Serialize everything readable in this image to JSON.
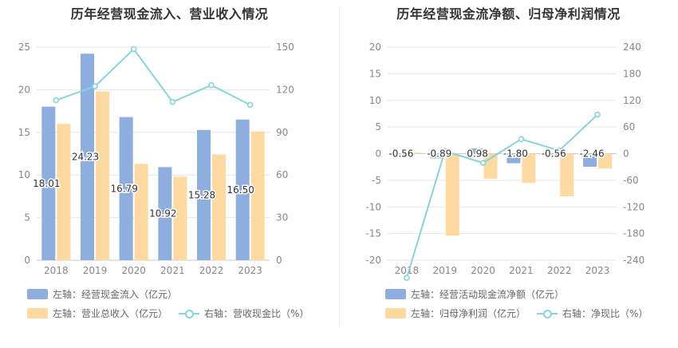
{
  "colors": {
    "blue": "#8eaedf",
    "orange": "#fed9a0",
    "cyan": "#88d4dc",
    "grid": "#e6e6e6",
    "axis": "#c8c8c8",
    "tick": "#888888"
  },
  "chart_data": [
    {
      "type": "bar",
      "title": "历年经营现金流入、营业收入情况",
      "categories": [
        "2018",
        "2019",
        "2020",
        "2021",
        "2022",
        "2023"
      ],
      "series": [
        {
          "name": "经营现金流入（亿元）",
          "axis": "left",
          "kind": "bar",
          "values": [
            18.01,
            24.23,
            16.79,
            10.92,
            15.28,
            16.5
          ],
          "labels": [
            "18.01",
            "24.23",
            "16.79",
            "10.92",
            "15.28",
            "16.50"
          ]
        },
        {
          "name": "营业总收入（亿元）",
          "axis": "left",
          "kind": "bar",
          "values": [
            16.0,
            19.8,
            11.3,
            9.8,
            12.4,
            15.1
          ]
        },
        {
          "name": "营收现金比（%）",
          "axis": "right",
          "kind": "line",
          "values": [
            112.6,
            122.4,
            148.6,
            111.4,
            123.2,
            109.3
          ]
        }
      ],
      "y_left": {
        "min": 0,
        "max": 25,
        "ticks": [
          "0",
          "5",
          "10",
          "15",
          "20",
          "25"
        ]
      },
      "y_right": {
        "min": 0,
        "max": 150,
        "ticks": [
          "0",
          "30",
          "60",
          "90",
          "120",
          "150"
        ]
      },
      "legend": [
        {
          "prefix": "左轴：",
          "label": "经营现金流入（亿元）",
          "type": "rect",
          "color": "blue"
        },
        {
          "prefix": "左轴：",
          "label": "营业总收入（亿元）",
          "type": "rect",
          "color": "orange"
        },
        {
          "prefix": "右轴：",
          "label": "营收现金比（%）",
          "type": "line",
          "color": "cyan"
        }
      ]
    },
    {
      "type": "bar",
      "title": "历年经营现金流净额、归母净利润情况",
      "categories": [
        "2018",
        "2019",
        "2020",
        "2021",
        "2022",
        "2023"
      ],
      "series": [
        {
          "name": "经营活动现金流净额（亿元）",
          "axis": "left",
          "kind": "bar",
          "values": [
            -0.56,
            -0.89,
            0.98,
            -1.8,
            -0.56,
            -2.46
          ],
          "labels": [
            "-0.56",
            "-0.89",
            "0.98",
            "-1.80",
            "-0.56",
            "-2.46"
          ]
        },
        {
          "name": "归母净利润（亿元）",
          "axis": "left",
          "kind": "bar",
          "values": [
            0.2,
            -15.4,
            -4.7,
            -5.5,
            -8.0,
            -2.8
          ]
        },
        {
          "name": "净现比（%）",
          "axis": "right",
          "kind": "line",
          "values": [
            -280,
            5.8,
            -20.9,
            32.7,
            7.0,
            87.9
          ]
        }
      ],
      "y_left": {
        "min": -20,
        "max": 20,
        "ticks": [
          "-20",
          "-15",
          "-10",
          "-5",
          "0",
          "5",
          "10",
          "15",
          "20"
        ]
      },
      "y_right": {
        "min": -240,
        "max": 240,
        "ticks": [
          "-240",
          "-180",
          "-120",
          "-60",
          "0",
          "60",
          "120",
          "180",
          "240"
        ]
      },
      "legend": [
        {
          "prefix": "左轴：",
          "label": "经营活动现金流净额（亿元）",
          "type": "rect",
          "color": "blue"
        },
        {
          "prefix": "左轴：",
          "label": "归母净利润（亿元）",
          "type": "rect",
          "color": "orange"
        },
        {
          "prefix": "右轴：",
          "label": "净现比（%）",
          "type": "line",
          "color": "cyan"
        }
      ]
    }
  ]
}
